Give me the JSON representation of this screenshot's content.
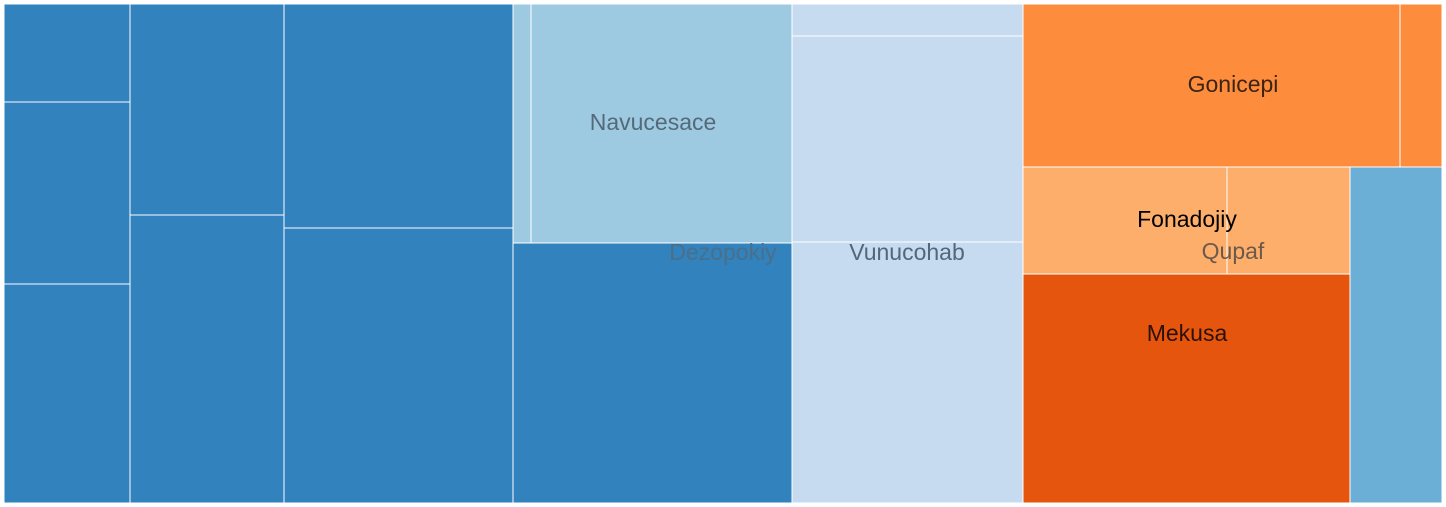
{
  "chart_data": {
    "type": "treemap",
    "colors": {
      "blue_dark": "#3182bd",
      "blue_mid": "#6baed6",
      "blue_light": "#9ecae1",
      "blue_pale": "#c6dbef",
      "orange_dark": "#e6550d",
      "orange_mid": "#fd8d3c",
      "orange_light": "#fdae6b",
      "border": "#ffffff"
    },
    "groups": [
      {
        "label": "Dezopokiy",
        "label_color": "#4a6f8a",
        "children": [
          {
            "label": "",
            "value": 12.0,
            "color": "blue_dark"
          },
          {
            "label": "",
            "value": 22.0,
            "color": "blue_dark"
          },
          {
            "label": "",
            "value": 27.0,
            "color": "blue_dark"
          },
          {
            "label": "",
            "value": 32.0,
            "color": "blue_dark"
          },
          {
            "label": "",
            "value": 44.0,
            "color": "blue_dark"
          },
          {
            "label": "",
            "value": 51.0,
            "color": "blue_dark"
          },
          {
            "label": "",
            "value": 62.0,
            "color": "blue_dark"
          },
          {
            "label": "",
            "value": 71.0,
            "color": "blue_dark"
          },
          {
            "label": "",
            "value": 3.9,
            "color": "blue_light"
          },
          {
            "label": "Navucesace",
            "value": 62.0,
            "color": "blue_light"
          }
        ]
      },
      {
        "label": "Vunucohab",
        "label_color": "#52677a",
        "children": [
          {
            "label": "",
            "value": 7.5,
            "color": "blue_pale"
          },
          {
            "label": "",
            "value": 47.0,
            "color": "blue_pale"
          },
          {
            "label": "",
            "value": 59.0,
            "color": "blue_pale"
          }
        ]
      },
      {
        "label": "Qupaf",
        "label_color": "#6b5a4b",
        "children": [
          {
            "label": "Gonicepi",
            "value": 60.0,
            "color": "orange_mid"
          },
          {
            "label": "",
            "value": 7.0,
            "color": "orange_mid"
          },
          {
            "label": "Fonadojiy",
            "value": 20.5,
            "color": "orange_light"
          },
          {
            "label": "",
            "value": 12.0,
            "color": "orange_light"
          },
          {
            "label": "Mekusa",
            "value": 74.0,
            "color": "orange_dark"
          },
          {
            "label": "",
            "value": 33.0,
            "color": "blue_mid"
          }
        ]
      }
    ]
  }
}
